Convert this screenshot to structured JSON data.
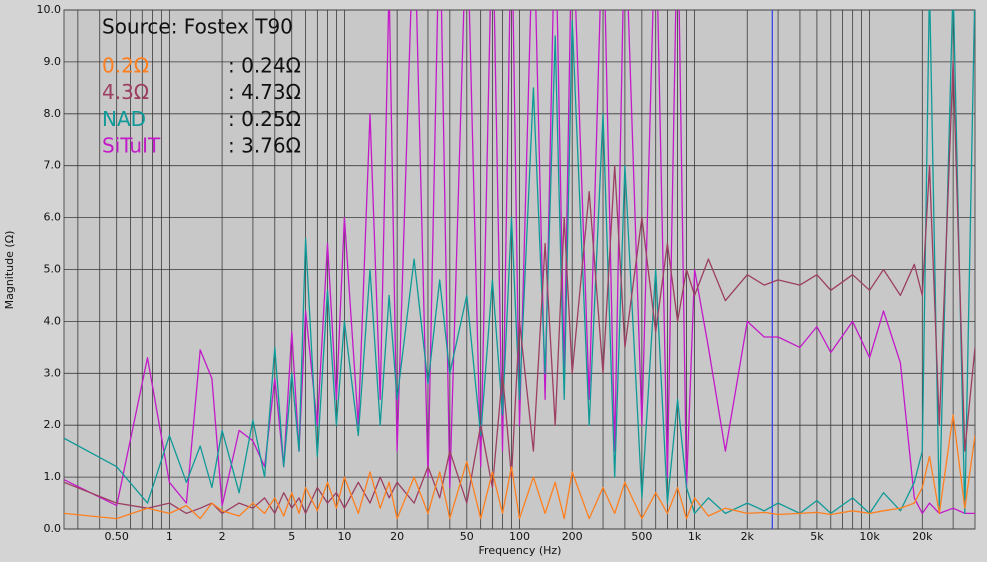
{
  "chart_data": {
    "type": "line",
    "legend_title": "Source: Fostex T90",
    "ylabel": "Magnitude (Ω)",
    "xlabel": "Frequency (Hz)",
    "log_x": true,
    "grid": true,
    "legend_position": "top-left",
    "cursor_x": 2780,
    "cursor_color": "#2b3cf0",
    "xlim": [
      0.25,
      40000
    ],
    "ylim": [
      0,
      10
    ],
    "xticks": [
      {
        "value": 0.5,
        "label": "0.50"
      },
      1,
      2,
      5,
      10,
      20,
      50,
      100,
      200,
      500,
      {
        "value": 1000,
        "label": "1k"
      },
      {
        "value": 2000,
        "label": "2k"
      },
      {
        "value": 5000,
        "label": "5k"
      },
      {
        "value": 10000,
        "label": "10k"
      },
      {
        "value": 20000,
        "label": "20k"
      }
    ],
    "xminorticks": [
      0.3,
      0.4,
      0.6,
      0.7,
      0.8,
      0.9,
      3,
      4,
      6,
      7,
      8,
      9,
      30,
      40,
      60,
      70,
      80,
      90,
      300,
      400,
      600,
      700,
      800,
      900,
      3000,
      4000,
      6000,
      7000,
      8000,
      9000,
      30000
    ],
    "yticks": [
      {
        "value": 0,
        "label": "0.0"
      },
      {
        "value": 1,
        "label": "1.0"
      },
      {
        "value": 2,
        "label": "2.0"
      },
      {
        "value": 3,
        "label": "3.0"
      },
      {
        "value": 4,
        "label": "4.0"
      },
      {
        "value": 5,
        "label": "5.0"
      },
      {
        "value": 6,
        "label": "6.0"
      },
      {
        "value": 7,
        "label": "7.0"
      },
      {
        "value": 8,
        "label": "8.0"
      },
      {
        "value": 9,
        "label": "9.0"
      },
      {
        "value": 10,
        "label": "10.0"
      }
    ],
    "x": [
      0.25,
      0.5,
      0.75,
      1,
      1.25,
      1.5,
      1.75,
      2,
      2.5,
      3,
      3.5,
      4,
      4.5,
      5,
      5.5,
      6,
      7,
      8,
      9,
      10,
      12,
      14,
      16,
      18,
      20,
      25,
      30,
      35,
      40,
      50,
      60,
      70,
      80,
      90,
      100,
      120,
      140,
      160,
      180,
      200,
      250,
      300,
      350,
      400,
      500,
      600,
      700,
      800,
      900,
      1000,
      1200,
      1500,
      2000,
      2500,
      3000,
      4000,
      5000,
      6000,
      8000,
      10000,
      12000,
      15000,
      18000,
      20000,
      22000,
      25000,
      30000,
      35000,
      40000
    ],
    "series": [
      {
        "name": "0.2Ω",
        "legend_value": ": 0.24Ω",
        "color": "#ff7f1e",
        "values": [
          0.3,
          0.2,
          0.4,
          0.3,
          0.45,
          0.2,
          0.5,
          0.35,
          0.25,
          0.5,
          0.3,
          0.6,
          0.25,
          0.7,
          0.3,
          0.8,
          0.35,
          0.9,
          0.4,
          1.0,
          0.3,
          1.1,
          0.4,
          0.9,
          0.2,
          1.0,
          0.3,
          1.1,
          0.2,
          1.3,
          0.2,
          1.1,
          0.3,
          1.2,
          0.2,
          1.0,
          0.3,
          0.9,
          0.2,
          1.1,
          0.2,
          0.8,
          0.3,
          0.9,
          0.2,
          0.7,
          0.3,
          0.8,
          0.2,
          0.6,
          0.25,
          0.4,
          0.3,
          0.32,
          0.28,
          0.3,
          0.32,
          0.28,
          0.35,
          0.3,
          0.35,
          0.4,
          0.5,
          0.8,
          1.4,
          0.3,
          2.2,
          0.4,
          1.8
        ]
      },
      {
        "name": "4.3Ω",
        "legend_value": ": 4.73Ω",
        "color": "#9c3f62",
        "values": [
          0.9,
          0.5,
          0.4,
          0.5,
          0.3,
          0.4,
          0.5,
          0.3,
          0.5,
          0.4,
          0.6,
          0.3,
          0.7,
          0.4,
          0.6,
          0.3,
          0.8,
          0.5,
          0.7,
          0.4,
          0.9,
          0.5,
          1.0,
          0.6,
          0.9,
          0.5,
          1.2,
          0.6,
          1.5,
          0.5,
          2.0,
          0.8,
          3.0,
          1.0,
          4.0,
          1.5,
          5.5,
          2.0,
          6.0,
          3.0,
          6.5,
          3.0,
          7.0,
          3.5,
          6.0,
          3.8,
          5.5,
          4.0,
          5.0,
          4.5,
          5.2,
          4.4,
          4.9,
          4.7,
          4.8,
          4.7,
          4.9,
          4.6,
          4.9,
          4.6,
          5.0,
          4.5,
          5.1,
          4.5,
          7.0,
          2.0,
          9.0,
          1.5,
          3.5
        ]
      },
      {
        "name": "NAD",
        "legend_value": ": 0.25Ω",
        "color": "#0f9a98",
        "values": [
          1.75,
          1.2,
          0.5,
          1.8,
          0.9,
          1.6,
          0.8,
          1.9,
          0.7,
          2.1,
          1.0,
          3.5,
          1.2,
          3.0,
          1.5,
          5.6,
          1.4,
          4.6,
          2.0,
          4.0,
          1.8,
          5.0,
          2.0,
          4.5,
          2.5,
          5.2,
          2.8,
          4.8,
          3.0,
          4.5,
          1.8,
          4.8,
          2.2,
          6.0,
          2.5,
          8.5,
          3.0,
          9.5,
          2.5,
          9.8,
          2.0,
          8.0,
          1.0,
          7.0,
          0.6,
          5.0,
          0.5,
          2.5,
          0.8,
          0.3,
          0.6,
          0.3,
          0.5,
          0.35,
          0.5,
          0.3,
          0.55,
          0.3,
          0.6,
          0.3,
          0.7,
          0.35,
          0.9,
          1.5,
          10.5,
          0.4,
          10.5,
          0.3,
          10.5
        ]
      },
      {
        "name": "SiTuIT",
        "legend_value": ": 3.76Ω",
        "color": "#c21ac8",
        "values": [
          0.95,
          0.45,
          3.3,
          0.9,
          0.5,
          3.45,
          2.9,
          0.45,
          1.9,
          1.7,
          1.2,
          2.9,
          1.2,
          3.8,
          1.5,
          4.2,
          2.0,
          5.5,
          2.5,
          6.0,
          2.0,
          8.0,
          2.5,
          10.5,
          1.5,
          12,
          1.0,
          12,
          0.8,
          12,
          1.2,
          12,
          1.5,
          12,
          2.0,
          12,
          2.5,
          12,
          3.0,
          12,
          2.5,
          12,
          1.5,
          12,
          2.0,
          12,
          1.0,
          12,
          0.8,
          5.0,
          3.5,
          1.5,
          4.0,
          3.7,
          3.7,
          3.5,
          3.9,
          3.4,
          4.0,
          3.3,
          4.2,
          3.2,
          0.6,
          0.3,
          0.5,
          0.3,
          0.4,
          0.3,
          0.3
        ]
      }
    ]
  }
}
